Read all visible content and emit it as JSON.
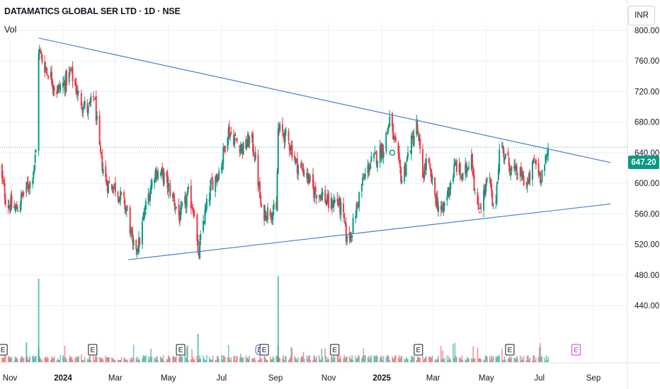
{
  "header": {
    "title": "DATAMATICS GLOBAL SER LTD · 1D · NSE",
    "volume_label": "Vol",
    "currency_label": "INR",
    "last_price_label": "647.20"
  },
  "colors": {
    "up": "#089981",
    "down": "#f23645",
    "trendline": "#4a7fd4",
    "grid": "#eceef2",
    "event": "#131722",
    "event_future": "#c13fd0"
  },
  "chart_data": {
    "type": "candlestick",
    "title": "DATAMATICS GLOBAL SER LTD · 1D · NSE",
    "ylim": [
      420,
      800
    ],
    "y_ticks": [
      440,
      480,
      520,
      560,
      600,
      640,
      680,
      720,
      760,
      800
    ],
    "y_tick_labels": [
      "440.00",
      "480.00",
      "520.00",
      "560.00",
      "600.00",
      "640.00",
      "680.00",
      "720.00",
      "760.00",
      "800.00"
    ],
    "x_ticks": [
      {
        "label": "Nov",
        "date": "2023-11-01",
        "bold": false
      },
      {
        "label": "2024",
        "date": "2024-01-01",
        "bold": true
      },
      {
        "label": "Mar",
        "date": "2024-03-01",
        "bold": false
      },
      {
        "label": "May",
        "date": "2024-05-01",
        "bold": false
      },
      {
        "label": "Jul",
        "date": "2024-07-01",
        "bold": false
      },
      {
        "label": "Sep",
        "date": "2024-09-01",
        "bold": false
      },
      {
        "label": "Nov",
        "date": "2024-11-01",
        "bold": false
      },
      {
        "label": "2025",
        "date": "2025-01-01",
        "bold": true
      },
      {
        "label": "Mar",
        "date": "2025-03-01",
        "bold": false
      },
      {
        "label": "May",
        "date": "2025-05-01",
        "bold": false
      },
      {
        "label": "Jul",
        "date": "2025-07-01",
        "bold": false
      },
      {
        "label": "Sep",
        "date": "2025-09-01",
        "bold": false
      }
    ],
    "last_price": 647.2,
    "price_anchors": [
      [
        "2023-10-20",
        620
      ],
      [
        "2023-10-28",
        575
      ],
      [
        "2023-11-08",
        565
      ],
      [
        "2023-11-16",
        585
      ],
      [
        "2023-11-26",
        605
      ],
      [
        "2023-12-01",
        640
      ],
      [
        "2023-12-04",
        775
      ],
      [
        "2023-12-10",
        755
      ],
      [
        "2023-12-18",
        740
      ],
      [
        "2023-12-24",
        720
      ],
      [
        "2024-01-02",
        730
      ],
      [
        "2024-01-10",
        745
      ],
      [
        "2024-01-20",
        710
      ],
      [
        "2024-01-30",
        695
      ],
      [
        "2024-02-06",
        715
      ],
      [
        "2024-02-12",
        640
      ],
      [
        "2024-02-20",
        600
      ],
      [
        "2024-03-01",
        595
      ],
      [
        "2024-03-10",
        575
      ],
      [
        "2024-03-16",
        560
      ],
      [
        "2024-03-21",
        515
      ],
      [
        "2024-03-28",
        520
      ],
      [
        "2024-04-05",
        570
      ],
      [
        "2024-04-15",
        615
      ],
      [
        "2024-04-25",
        610
      ],
      [
        "2024-05-05",
        585
      ],
      [
        "2024-05-14",
        555
      ],
      [
        "2024-05-24",
        585
      ],
      [
        "2024-06-01",
        560
      ],
      [
        "2024-06-04",
        500
      ],
      [
        "2024-06-10",
        550
      ],
      [
        "2024-06-20",
        600
      ],
      [
        "2024-06-30",
        620
      ],
      [
        "2024-07-08",
        670
      ],
      [
        "2024-07-18",
        655
      ],
      [
        "2024-07-26",
        645
      ],
      [
        "2024-08-04",
        660
      ],
      [
        "2024-08-10",
        625
      ],
      [
        "2024-08-16",
        560
      ],
      [
        "2024-08-28",
        565
      ],
      [
        "2024-09-02",
        560
      ],
      [
        "2024-09-04",
        670
      ],
      [
        "2024-09-10",
        665
      ],
      [
        "2024-09-18",
        650
      ],
      [
        "2024-09-25",
        625
      ],
      [
        "2024-10-05",
        615
      ],
      [
        "2024-10-15",
        590
      ],
      [
        "2024-10-25",
        585
      ],
      [
        "2024-11-02",
        570
      ],
      [
        "2024-11-10",
        580
      ],
      [
        "2024-11-17",
        560
      ],
      [
        "2024-11-22",
        525
      ],
      [
        "2024-11-28",
        540
      ],
      [
        "2024-12-08",
        595
      ],
      [
        "2024-12-18",
        625
      ],
      [
        "2024-12-26",
        635
      ],
      [
        "2025-01-04",
        650
      ],
      [
        "2025-01-10",
        685
      ],
      [
        "2025-01-16",
        650
      ],
      [
        "2025-01-24",
        605
      ],
      [
        "2025-02-02",
        645
      ],
      [
        "2025-02-10",
        675
      ],
      [
        "2025-02-17",
        610
      ],
      [
        "2025-02-22",
        630
      ],
      [
        "2025-03-04",
        580
      ],
      [
        "2025-03-11",
        560
      ],
      [
        "2025-03-18",
        590
      ],
      [
        "2025-03-27",
        625
      ],
      [
        "2025-04-04",
        605
      ],
      [
        "2025-04-14",
        640
      ],
      [
        "2025-04-20",
        560
      ],
      [
        "2025-04-28",
        585
      ],
      [
        "2025-05-04",
        610
      ],
      [
        "2025-05-10",
        555
      ],
      [
        "2025-05-17",
        655
      ],
      [
        "2025-05-24",
        630
      ],
      [
        "2025-06-01",
        615
      ],
      [
        "2025-06-10",
        610
      ],
      [
        "2025-06-18",
        598
      ],
      [
        "2025-06-25",
        630
      ],
      [
        "2025-07-02",
        610
      ],
      [
        "2025-07-09",
        630
      ],
      [
        "2025-07-12",
        647.2
      ]
    ],
    "trendlines": [
      {
        "name": "upper",
        "points": [
          [
            "2023-12-04",
            790
          ],
          [
            "2025-09-21",
            627
          ]
        ]
      },
      {
        "name": "lower",
        "points": [
          [
            "2024-03-16",
            500
          ],
          [
            "2025-09-21",
            573
          ]
        ]
      }
    ],
    "events": [
      {
        "label": "E",
        "date": "2023-10-24",
        "future": false
      },
      {
        "label": "E",
        "date": "2024-02-04",
        "future": false
      },
      {
        "label": "E",
        "date": "2024-05-15",
        "future": false
      },
      {
        "label": "D",
        "date": "2024-08-14",
        "future": false
      },
      {
        "label": "E",
        "date": "2024-08-19",
        "future": false
      },
      {
        "label": "E",
        "date": "2024-11-08",
        "future": false
      },
      {
        "label": "E",
        "date": "2025-02-12",
        "future": false
      },
      {
        "label": "E",
        "date": "2025-05-28",
        "future": false
      },
      {
        "label": "E",
        "date": "2025-08-12",
        "future": true
      }
    ]
  }
}
